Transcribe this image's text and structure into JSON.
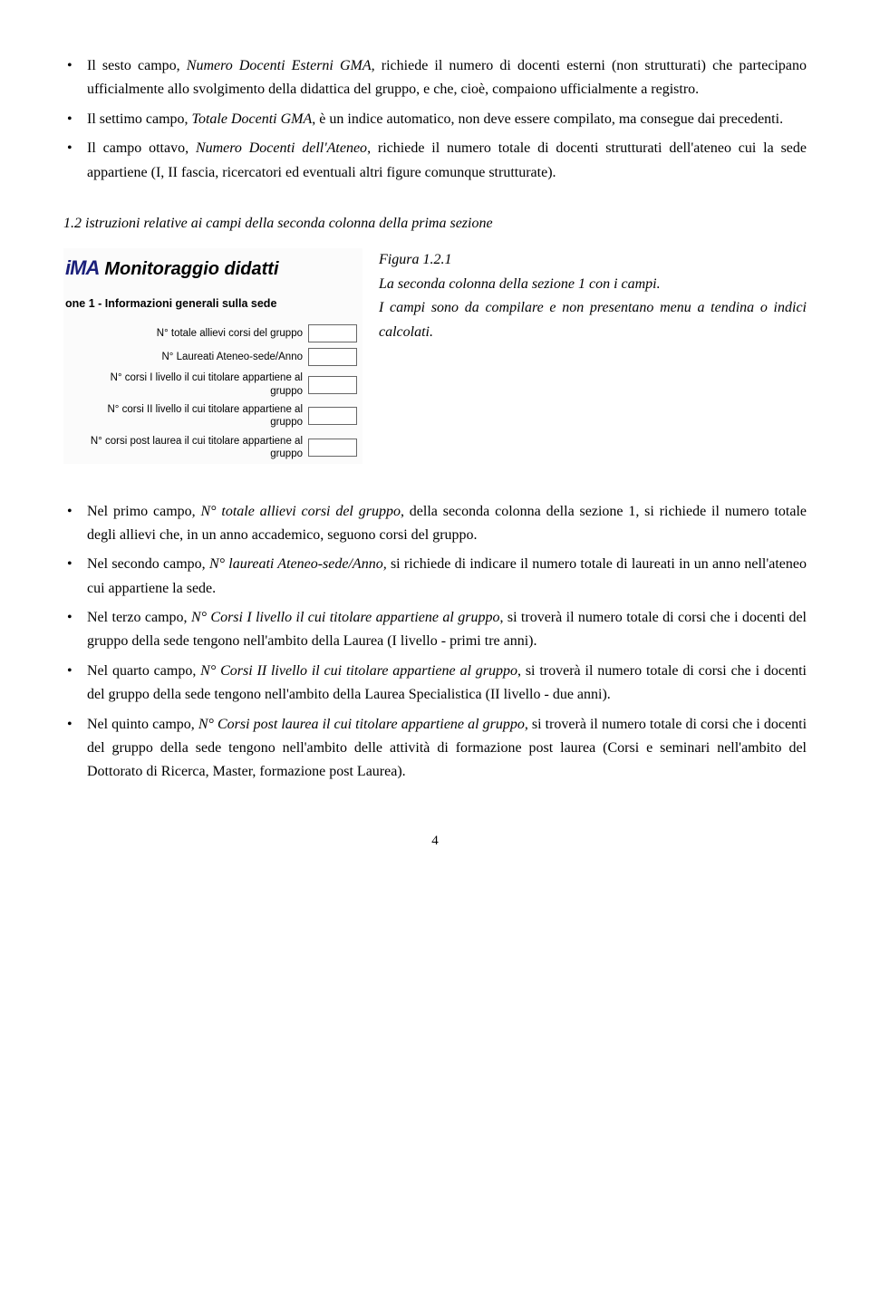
{
  "top_bullets": [
    {
      "pre": "Il sesto campo, ",
      "em1": "Numero Docenti Esterni GMA,",
      "post": " richiede il numero di docenti esterni (non strutturati) che partecipano ufficialmente allo svolgimento della didattica del gruppo, e che, cioè, compaiono ufficialmente a registro."
    },
    {
      "pre": "Il settimo campo, ",
      "em1": "Totale Docenti GMA",
      "post": ", è un indice automatico, non deve essere compilato, ma consegue dai precedenti."
    },
    {
      "pre": "Il campo ottavo, ",
      "em1": "Numero Docenti dell'Ateneo",
      "post": ", richiede il numero totale di docenti strutturati dell'ateneo cui la sede appartiene (I, II fascia, ricercatori ed eventuali altri figure comunque strutturate)."
    }
  ],
  "section_heading": "1.2 istruzioni relative ai campi della seconda colonna della prima sezione",
  "figure": {
    "logo": "iMA",
    "title": "Monitoraggio didatti",
    "subheader": "one 1 - Informazioni generali sulla sede",
    "fields": [
      "N° totale allievi corsi del gruppo",
      "N° Laureati Ateneo-sede/Anno",
      "N° corsi I livello il cui titolare appartiene al gruppo",
      "N° corsi II livello il cui titolare appartiene al gruppo",
      "N° corsi post laurea il cui titolare appartiene al gruppo"
    ]
  },
  "caption": {
    "ref": "Figura 1.2.1",
    "line1": "La seconda colonna della sezione 1 con i campi.",
    "line2": "I campi sono da compilare e non presentano menu a tendina o indici calcolati."
  },
  "bottom_bullets": [
    {
      "pre": "Nel primo campo, ",
      "em1": "N° totale allievi corsi del gruppo",
      "post": ", della seconda colonna della sezione 1, si richiede il numero totale degli allievi che, in un anno accademico, seguono corsi del gruppo."
    },
    {
      "pre": "Nel secondo campo, ",
      "em1": "N° laureati Ateneo-sede/Anno,",
      "post": " si richiede di indicare il numero totale di laureati in un anno nell'ateneo cui appartiene la sede."
    },
    {
      "pre": "Nel terzo campo, ",
      "em1": "N° Corsi I livello il cui titolare appartiene al gruppo",
      "post": ", si troverà il numero totale di corsi che i docenti del gruppo della sede tengono nell'ambito della Laurea (I livello - primi tre anni)."
    },
    {
      "pre": "Nel quarto campo, ",
      "em1": "N° Corsi II livello il cui titolare appartiene al gruppo",
      "post": ", si troverà il numero totale di corsi che i docenti del gruppo della sede tengono nell'ambito della Laurea Specialistica (II livello - due anni)."
    },
    {
      "pre": "Nel quinto campo, ",
      "em1": "N° Corsi post laurea il cui titolare appartiene al gruppo",
      "post": ", si troverà il numero totale di corsi che i docenti del gruppo della sede tengono nell'ambito delle attività di formazione post laurea (Corsi e seminari nell'ambito del Dottorato di Ricerca, Master, formazione post Laurea)."
    }
  ],
  "page_number": "4"
}
